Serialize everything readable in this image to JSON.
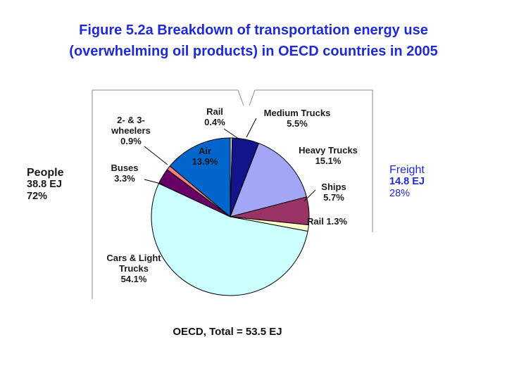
{
  "title": {
    "line1": "Figure 5.2a Breakdown of transportation energy use",
    "line2": "(overwhelming oil products) in OECD countries in 2005"
  },
  "people_label": {
    "name": "People",
    "amount": "38.8 EJ",
    "share": "72%"
  },
  "freight_label": {
    "name": "Freight",
    "amount": "14.8 EJ",
    "share": "28%"
  },
  "chart_data": {
    "type": "pie",
    "total_label": "OECD, Total = 53.5 EJ",
    "slices": [
      {
        "value": 0.4,
        "color": "#ffffff",
        "label": [
          "Rail",
          "0.4%"
        ]
      },
      {
        "value": 5.5,
        "color": "#11148a",
        "label": [
          "Medium Trucks",
          "5.5%"
        ]
      },
      {
        "value": 15.1,
        "color": "#a3a6f4",
        "label": [
          "Heavy Trucks",
          "15.1%"
        ]
      },
      {
        "value": 5.7,
        "color": "#993366",
        "label": [
          "Ships",
          "5.7%"
        ]
      },
      {
        "value": 1.3,
        "color": "#ffffcc",
        "label": [
          "Rail 1.3%"
        ]
      },
      {
        "value": 54.1,
        "color": "#ccffff",
        "label": [
          "Cars & Light",
          "Trucks",
          "54.1%"
        ]
      },
      {
        "value": 3.3,
        "color": "#660066",
        "label": [
          "Buses",
          "3.3%"
        ]
      },
      {
        "value": 0.9,
        "color": "#ff8080",
        "label": [
          "2- & 3-",
          "wheelers",
          "0.9%"
        ]
      },
      {
        "value": 13.9,
        "color": "#0066cc",
        "label": [
          "Air",
          "13.9%"
        ]
      }
    ]
  }
}
